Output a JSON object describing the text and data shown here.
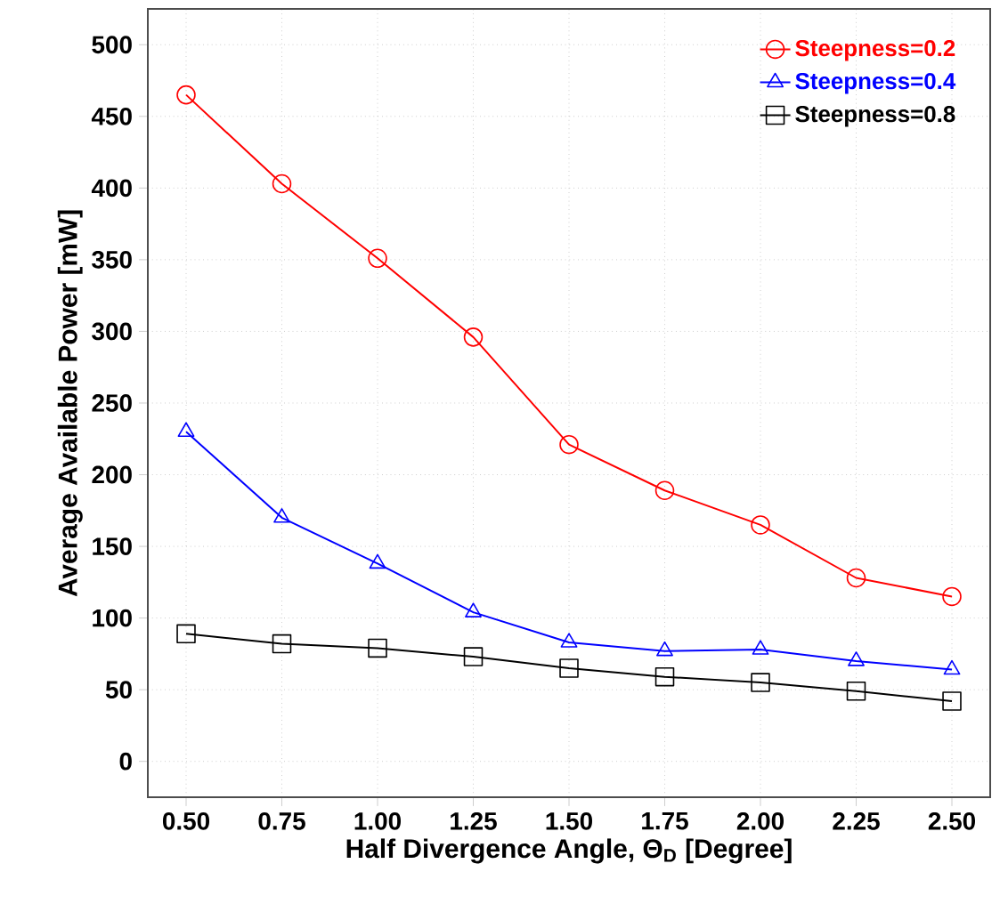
{
  "chart_data": {
    "type": "line",
    "xlabel": "Half Divergence Angle, Θ$_{D}$ [Degree]",
    "ylabel": "Average Available Power [mW]",
    "x": [
      0.5,
      0.75,
      1.0,
      1.25,
      1.5,
      1.75,
      2.0,
      2.25,
      2.5
    ],
    "series": [
      {
        "name": "Steepness=0.2",
        "color": "#ff0000",
        "marker": "circle",
        "values": [
          465,
          403,
          351,
          296,
          221,
          189,
          165,
          128,
          115
        ]
      },
      {
        "name": "Steepness=0.4",
        "color": "#0000ff",
        "marker": "triangle",
        "values": [
          230,
          170,
          138,
          104,
          83,
          77,
          78,
          70,
          64
        ]
      },
      {
        "name": "Steepness=0.8",
        "color": "#000000",
        "marker": "square",
        "values": [
          89,
          82,
          79,
          73,
          65,
          59,
          55,
          49,
          42
        ]
      }
    ],
    "xlim": [
      0.4,
      2.6
    ],
    "ylim": [
      -25,
      525
    ],
    "xticks": [
      {
        "value": 0.5,
        "label": "0.50"
      },
      {
        "value": 0.75,
        "label": "0.75"
      },
      {
        "value": 1.0,
        "label": "1.00"
      },
      {
        "value": 1.25,
        "label": "1.25"
      },
      {
        "value": 1.5,
        "label": "1.50"
      },
      {
        "value": 1.75,
        "label": "1.75"
      },
      {
        "value": 2.0,
        "label": "2.00"
      },
      {
        "value": 2.25,
        "label": "2.25"
      },
      {
        "value": 2.5,
        "label": "2.50"
      }
    ],
    "yticks": [
      0,
      50,
      100,
      150,
      200,
      250,
      300,
      350,
      400,
      450,
      500
    ],
    "grid": true,
    "legend": "top right",
    "line_style": "solid"
  }
}
